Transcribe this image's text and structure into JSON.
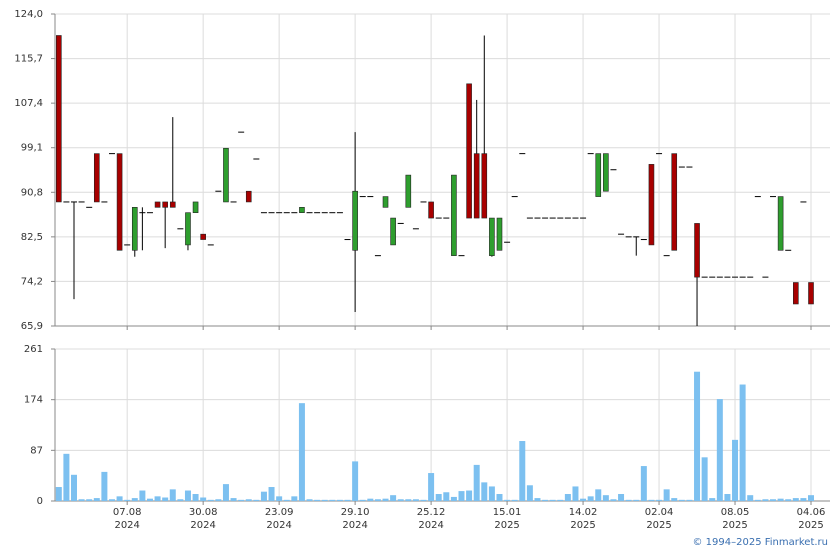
{
  "chart_data": [
    {
      "type": "candlestick",
      "up_color": "#2e9e2e",
      "down_color": "#a80000",
      "wick_color": "#000000",
      "grid": true,
      "ylim": [
        65.9,
        124.0
      ],
      "yticks": [
        {
          "value": 65.9,
          "label": "65,9"
        },
        {
          "value": 74.2,
          "label": "74,2"
        },
        {
          "value": 82.5,
          "label": "82,5"
        },
        {
          "value": 90.8,
          "label": "90,8"
        },
        {
          "value": 99.1,
          "label": "99,1"
        },
        {
          "value": 107.4,
          "label": "107,4"
        },
        {
          "value": 115.7,
          "label": "115,7"
        },
        {
          "value": 124.0,
          "label": "124,0"
        }
      ],
      "open": [
        120,
        89,
        89,
        89,
        88,
        98,
        89,
        98,
        98,
        81,
        80,
        87,
        87,
        89,
        89,
        89,
        84,
        81,
        87,
        83,
        81,
        91,
        89,
        89,
        102,
        91,
        97,
        87,
        87,
        87,
        87,
        87,
        87,
        87,
        87,
        87,
        87,
        87,
        82,
        80,
        90,
        90,
        79,
        88,
        81,
        85,
        88,
        84,
        89,
        89,
        86,
        86,
        79,
        79,
        111,
        98,
        98,
        79,
        80,
        81.5,
        90,
        98,
        86,
        86,
        86,
        86,
        86,
        86,
        86,
        86,
        98,
        90,
        91,
        95,
        83,
        82.5,
        82.5,
        82,
        96,
        98,
        79,
        98,
        95.5,
        95.5,
        85,
        75,
        75,
        75,
        75,
        75,
        75,
        75,
        90,
        75,
        90,
        80,
        80,
        74,
        89,
        74
      ],
      "high": [
        120,
        89,
        89,
        89,
        88,
        98,
        89,
        98,
        98,
        81,
        88,
        88,
        87,
        89,
        89,
        104.8,
        84,
        87,
        89,
        83,
        81,
        91,
        99,
        89,
        102,
        91,
        97,
        87,
        87,
        87,
        87,
        87,
        88,
        87,
        87,
        87,
        87,
        87,
        82,
        102,
        90,
        90,
        79,
        90,
        86,
        85,
        94,
        84,
        89,
        89,
        86,
        86,
        94,
        79,
        111,
        108,
        120,
        86,
        86,
        81.5,
        90,
        98,
        86,
        86,
        86,
        86,
        86,
        86,
        86,
        86,
        98,
        98,
        98,
        95,
        83,
        82.5,
        82.5,
        82,
        96,
        98,
        79,
        98,
        95.5,
        95.5,
        85,
        75,
        75,
        75,
        75,
        75,
        75,
        75,
        90,
        75,
        90,
        90,
        80,
        74,
        89,
        74
      ],
      "low": [
        89,
        89,
        70.9,
        89,
        88,
        89,
        89,
        98,
        80,
        81,
        78.8,
        80,
        87,
        88,
        80.4,
        88,
        84,
        80,
        87,
        82,
        81,
        91,
        89,
        89,
        102,
        89,
        97,
        87,
        87,
        87,
        87,
        87,
        87,
        87,
        87,
        87,
        87,
        87,
        82,
        68.5,
        90,
        90,
        79,
        88,
        81,
        85,
        88,
        84,
        89,
        86,
        86,
        86,
        79,
        79,
        86,
        86,
        86,
        78.8,
        80,
        81.5,
        90,
        98,
        86,
        86,
        86,
        86,
        86,
        86,
        86,
        86,
        98,
        90,
        91,
        95,
        83,
        82.5,
        79,
        82,
        81,
        98,
        79,
        80,
        95.5,
        95.5,
        65.9,
        75,
        75,
        75,
        75,
        75,
        75,
        75,
        90,
        75,
        90,
        80,
        80,
        70,
        89,
        70
      ],
      "close": [
        89,
        89,
        89,
        89,
        88,
        89,
        89,
        98,
        80,
        81,
        88,
        87,
        87,
        88,
        88,
        88,
        84,
        87,
        89,
        82,
        81,
        91,
        99,
        89,
        102,
        89,
        97,
        87,
        87,
        87,
        87,
        87,
        88,
        87,
        87,
        87,
        87,
        87,
        82,
        91,
        90,
        90,
        79,
        90,
        86,
        85,
        94,
        84,
        89,
        86,
        86,
        86,
        94,
        79,
        86,
        86,
        86,
        86,
        86,
        81.5,
        90,
        98,
        86,
        86,
        86,
        86,
        86,
        86,
        86,
        86,
        98,
        98,
        98,
        95,
        83,
        82.5,
        82.5,
        82,
        81,
        98,
        79,
        80,
        95.5,
        95.5,
        75,
        75,
        75,
        75,
        75,
        75,
        75,
        75,
        90,
        75,
        90,
        90,
        80,
        70,
        89,
        70
      ]
    },
    {
      "type": "bar",
      "color": "#7cc0f0",
      "grid": true,
      "ylim": [
        0,
        261
      ],
      "yticks": [
        0,
        87,
        174,
        261
      ],
      "values": [
        24,
        81,
        45,
        3,
        3,
        5,
        50,
        3,
        8,
        2,
        5,
        18,
        4,
        8,
        6,
        20,
        3,
        18,
        12,
        6,
        2,
        3,
        29,
        5,
        2,
        3,
        2,
        16,
        24,
        8,
        2,
        8,
        168,
        3,
        2,
        2,
        2,
        2,
        2,
        68,
        2,
        4,
        3,
        4,
        10,
        3,
        3,
        3,
        2,
        48,
        12,
        15,
        7,
        17,
        18,
        62,
        32,
        25,
        12,
        2,
        2,
        103,
        27,
        5,
        2,
        2,
        2,
        12,
        25,
        4,
        8,
        20,
        10,
        3,
        12,
        2,
        2,
        60,
        2,
        2,
        20,
        5,
        2,
        2,
        222,
        75,
        5,
        175,
        12,
        105,
        200,
        10,
        2,
        3,
        3,
        4,
        3,
        5,
        5,
        10
      ],
      "xticks": [
        {
          "value": 9,
          "label": "07.08",
          "year": "2024"
        },
        {
          "value": 19,
          "label": "30.08",
          "year": "2024"
        },
        {
          "value": 29,
          "label": "23.09",
          "year": "2024"
        },
        {
          "value": 39,
          "label": "29.10",
          "year": "2024"
        },
        {
          "value": 49,
          "label": "25.12",
          "year": "2024"
        },
        {
          "value": 59,
          "label": "15.01",
          "year": "2025"
        },
        {
          "value": 69,
          "label": "14.02",
          "year": "2025"
        },
        {
          "value": 79,
          "label": "02.04",
          "year": "2025"
        },
        {
          "value": 89,
          "label": "08.05",
          "year": "2025"
        },
        {
          "value": 99,
          "label": "04.06",
          "year": "2025"
        }
      ]
    }
  ],
  "footer": "© 1994–2025 Finmarket.ru"
}
